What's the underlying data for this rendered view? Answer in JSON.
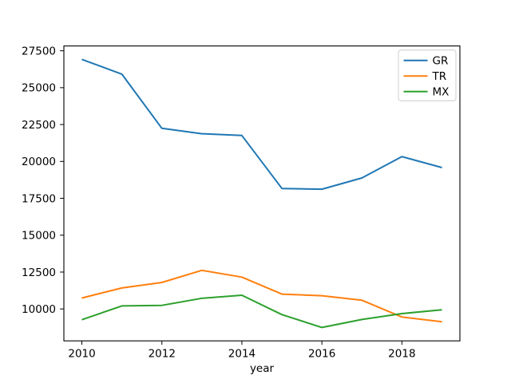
{
  "chart_data": {
    "type": "line",
    "title": "",
    "xlabel": "year",
    "ylabel": "",
    "x": [
      2010,
      2011,
      2012,
      2013,
      2014,
      2015,
      2016,
      2017,
      2018,
      2019
    ],
    "series": [
      {
        "name": "GR",
        "color": "#1f77b4",
        "values": [
          26918,
          25916,
          22243,
          21875,
          21761,
          18168,
          18117,
          18883,
          20324,
          19583
        ]
      },
      {
        "name": "TR",
        "color": "#ff7f0e",
        "values": [
          10743,
          11421,
          11795,
          12615,
          12158,
          11006,
          10895,
          10590,
          9454,
          9127
        ]
      },
      {
        "name": "MX",
        "color": "#2ca02c",
        "values": [
          9271,
          10204,
          10242,
          10726,
          10929,
          9617,
          8745,
          9288,
          9687,
          9946
        ]
      }
    ],
    "xlim": [
      2009.55,
      2019.45
    ],
    "ylim": [
      7836,
      27827
    ],
    "xticks": [
      2010,
      2012,
      2014,
      2016,
      2018
    ],
    "yticks": [
      10000,
      12500,
      15000,
      17500,
      20000,
      22500,
      25000,
      27500
    ],
    "grid": false,
    "legend_position": "upper right",
    "background": "#ffffff",
    "spine_color": "#000000",
    "text_color": "#000000",
    "legend_border_color": "#cccccc"
  }
}
